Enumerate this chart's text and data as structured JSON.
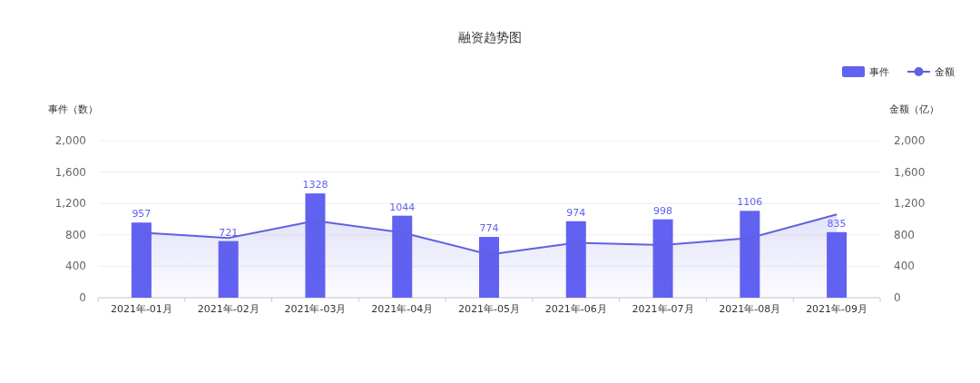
{
  "chart_data": {
    "type": "bar",
    "title": "融资趋势图",
    "ylabel": "事件（数）",
    "y2label": "金额（亿）",
    "categories": [
      "2021年-01月",
      "2021年-02月",
      "2021年-03月",
      "2021年-04月",
      "2021年-05月",
      "2021年-06月",
      "2021年-07月",
      "2021年-08月",
      "2021年-09月"
    ],
    "series": [
      {
        "name": "事件",
        "color": "#6161f2",
        "data_labels": true,
        "values": [
          957,
          721,
          1328,
          1044,
          774,
          974,
          998,
          1106,
          835
        ]
      },
      {
        "name": "金额",
        "type": "area",
        "color": "#6161e0",
        "marker": "none",
        "values": [
          830,
          760,
          980,
          830,
          550,
          700,
          670,
          760,
          1060
        ]
      }
    ],
    "ylim": [
      0,
      2000
    ],
    "yticks": [
      0,
      400,
      800,
      {
        "value": 1200,
        "label": "1,200"
      },
      {
        "value": 1600,
        "label": "1,600"
      },
      {
        "value": 2000,
        "label": "2,000"
      }
    ],
    "y2lim": [
      0,
      2000
    ],
    "y2ticks": [
      0,
      400,
      800,
      {
        "value": 1200,
        "label": "1,200"
      },
      {
        "value": 1600,
        "label": "1,600"
      },
      {
        "value": 2000,
        "label": "2,000"
      }
    ],
    "grid": "y",
    "legend": "top right"
  }
}
